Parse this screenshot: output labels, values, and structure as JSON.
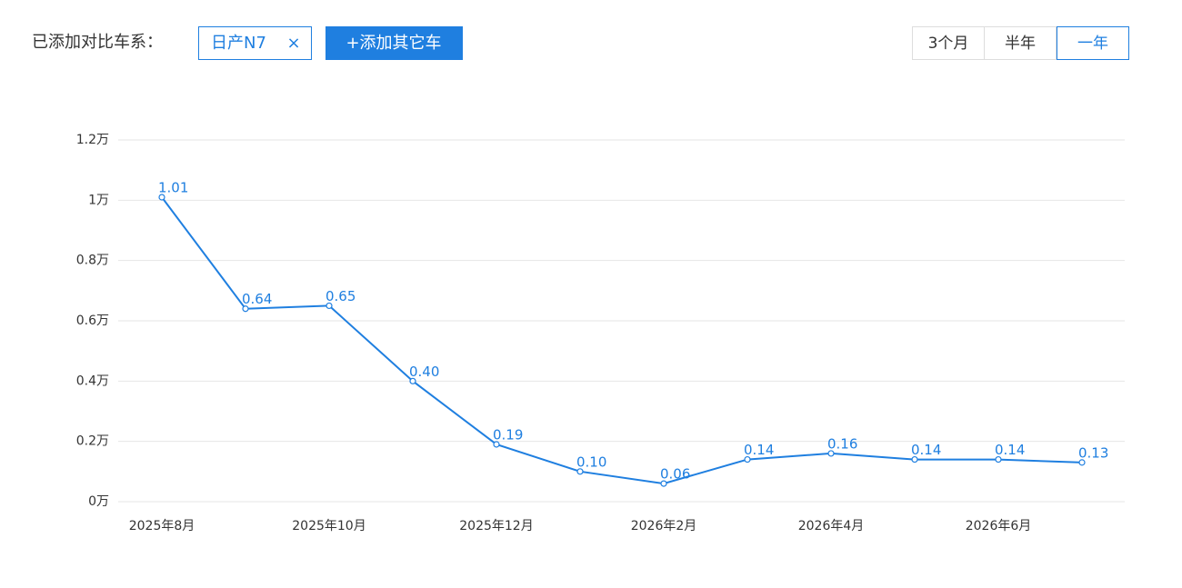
{
  "ui": {
    "compare_label": "已添加对比车系：",
    "tag": "日产N7",
    "tag_close": "×",
    "add_button": "+添加其它车",
    "ranges": [
      "3个月",
      "半年",
      "一年"
    ],
    "selected_range": 2
  },
  "chart_data": {
    "type": "line",
    "categories": [
      "2025年8月",
      null,
      "2025年10月",
      null,
      "2025年12月",
      null,
      "2026年2月",
      null,
      "2026年4月",
      null,
      "2026年6月",
      null
    ],
    "series": [
      {
        "name": "日产N7",
        "color": "#1f7fe0",
        "values": [
          1.01,
          0.64,
          0.65,
          0.4,
          0.19,
          0.1,
          0.06,
          0.14,
          0.16,
          0.14,
          0.14,
          0.13
        ],
        "value_labels": [
          "1.01",
          "0.64",
          "0.65",
          "0.40",
          "0.19",
          "0.10",
          "0.06",
          "0.14",
          "0.16",
          "0.14",
          "0.14",
          "0.13"
        ]
      }
    ],
    "ylim": [
      0,
      1.2
    ],
    "yticks": [
      {
        "value": 0,
        "label": "0万"
      },
      {
        "value": 0.2,
        "label": "0.2万"
      },
      {
        "value": 0.4,
        "label": "0.4万"
      },
      {
        "value": 0.6,
        "label": "0.6万"
      },
      {
        "value": 0.8,
        "label": "0.8万"
      },
      {
        "value": 1,
        "label": "1万"
      },
      {
        "value": 1.2,
        "label": "1.2万"
      }
    ],
    "grid": true
  }
}
